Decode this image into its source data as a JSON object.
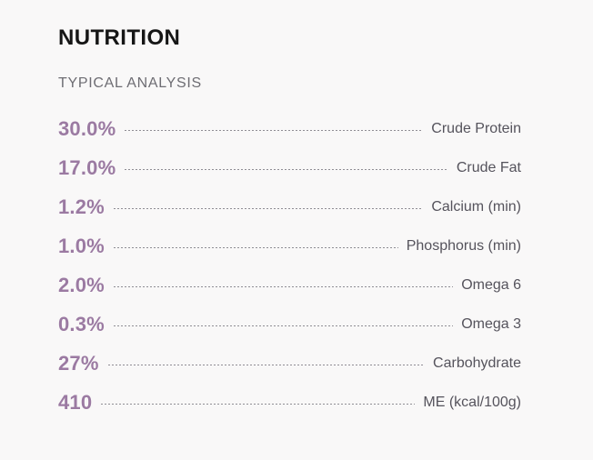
{
  "panel": {
    "title": "NUTRITION",
    "subtitle": "TYPICAL ANALYSIS",
    "rows": [
      {
        "value": "30.0%",
        "label": "Crude Protein"
      },
      {
        "value": "17.0%",
        "label": "Crude Fat"
      },
      {
        "value": "1.2%",
        "label": "Calcium (min)"
      },
      {
        "value": "1.0%",
        "label": "Phosphorus (min)"
      },
      {
        "value": "2.0%",
        "label": "Omega 6"
      },
      {
        "value": "0.3%",
        "label": "Omega 3"
      },
      {
        "value": "27%",
        "label": "Carbohydrate"
      },
      {
        "value": "410",
        "label": "ME (kcal/100g)"
      }
    ],
    "colors": {
      "background": "#f9f8f8",
      "title": "#161616",
      "subtitle": "#6e6d73",
      "value": "#9b7aa2",
      "label": "#55535c",
      "leader": "#8f8d94"
    }
  }
}
